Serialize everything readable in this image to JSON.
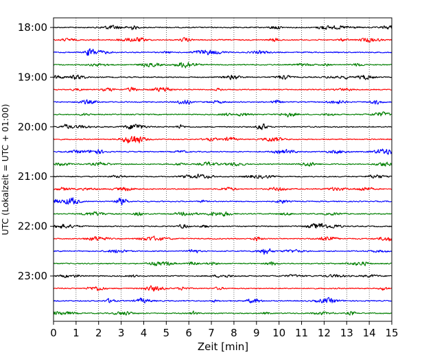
{
  "chart_data": {
    "type": "line",
    "title": "",
    "xlabel": "Zeit  [min]",
    "ylabel": "UTC (Lokalzeit = UTC + 01:00)",
    "xlim": [
      0,
      15
    ],
    "xticks": [
      "0",
      "1",
      "2",
      "3",
      "4",
      "5",
      "6",
      "7",
      "8",
      "9",
      "10",
      "11",
      "12",
      "13",
      "14",
      "15"
    ],
    "ytick_labels": [
      "18:00",
      "19:00",
      "20:00",
      "21:00",
      "22:00",
      "23:00"
    ],
    "grid": "vertical dotted at each minute",
    "trace_colors": [
      "#000000",
      "#ff0000",
      "#0000ff",
      "#007f00"
    ],
    "series": [
      {
        "trace_start": "18:00",
        "color": "#000000"
      },
      {
        "trace_start": "18:15",
        "color": "#ff0000"
      },
      {
        "trace_start": "18:30",
        "color": "#0000ff"
      },
      {
        "trace_start": "18:45",
        "color": "#007f00"
      },
      {
        "trace_start": "19:00",
        "color": "#000000"
      },
      {
        "trace_start": "19:15",
        "color": "#ff0000"
      },
      {
        "trace_start": "19:30",
        "color": "#0000ff"
      },
      {
        "trace_start": "19:45",
        "color": "#007f00"
      },
      {
        "trace_start": "20:00",
        "color": "#000000"
      },
      {
        "trace_start": "20:15",
        "color": "#ff0000"
      },
      {
        "trace_start": "20:30",
        "color": "#0000ff"
      },
      {
        "trace_start": "20:45",
        "color": "#007f00"
      },
      {
        "trace_start": "21:00",
        "color": "#000000"
      },
      {
        "trace_start": "21:15",
        "color": "#ff0000"
      },
      {
        "trace_start": "21:30",
        "color": "#0000ff"
      },
      {
        "trace_start": "21:45",
        "color": "#007f00"
      },
      {
        "trace_start": "22:00",
        "color": "#000000"
      },
      {
        "trace_start": "22:15",
        "color": "#ff0000"
      },
      {
        "trace_start": "22:30",
        "color": "#0000ff"
      },
      {
        "trace_start": "22:45",
        "color": "#007f00"
      },
      {
        "trace_start": "23:00",
        "color": "#000000"
      },
      {
        "trace_start": "23:15",
        "color": "#ff0000"
      },
      {
        "trace_start": "23:30",
        "color": "#0000ff"
      },
      {
        "trace_start": "23:45",
        "color": "#007f00"
      }
    ]
  }
}
